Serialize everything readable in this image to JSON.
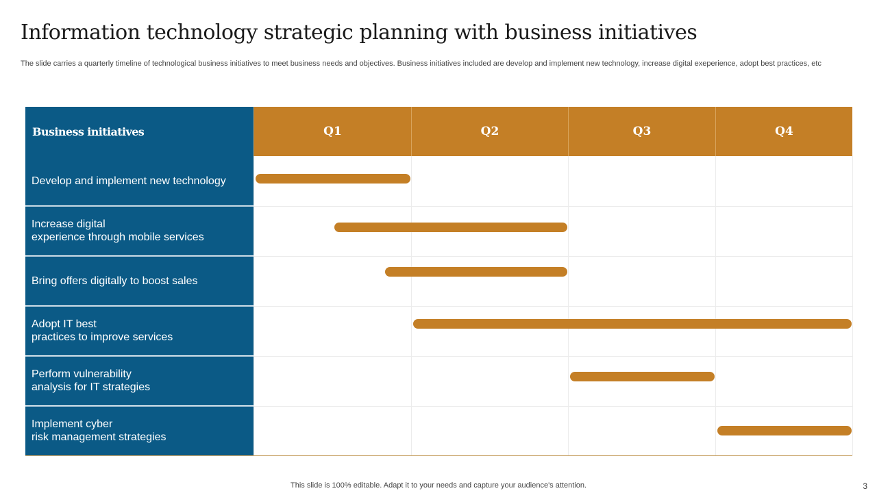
{
  "title": "Information technology strategic planning with business initiatives",
  "subtitle": "The slide carries a quarterly timeline of technological business initiatives to meet business needs and objectives. Business initiatives included are develop and implement new technology, increase digital exeperience, adopt best practices, etc",
  "table": {
    "header_label": "Business initiatives",
    "quarters": [
      "Q1",
      "Q2",
      "Q3",
      "Q4"
    ]
  },
  "colors": {
    "label_column": "#0b5a86",
    "quarter_header": "#c47f26",
    "bar": "#c47f26"
  },
  "chart_data": {
    "type": "gantt",
    "unit": "quarter (0 = start of Q1, 4 = end of Q4)",
    "tasks": [
      {
        "label": "Develop and implement new technology",
        "start": 0.0,
        "end": 1.0
      },
      {
        "label": "Increase digital\nexperience through  mobile services",
        "start": 0.5,
        "end": 2.0
      },
      {
        "label": "Bring offers digitally to boost sales",
        "start": 0.82,
        "end": 2.0
      },
      {
        "label": "Adopt IT  best\npractices to improve services",
        "start": 1.0,
        "end": 4.0
      },
      {
        "label": "Perform vulnerability\nanalysis for IT  strategies",
        "start": 2.0,
        "end": 3.0
      },
      {
        "label": "Implement  cyber\nrisk management  strategies",
        "start": 3.0,
        "end": 4.0
      }
    ]
  },
  "footer": "This slide is 100% editable. Adapt it to your needs and capture your audience's attention.",
  "page_number": "3"
}
